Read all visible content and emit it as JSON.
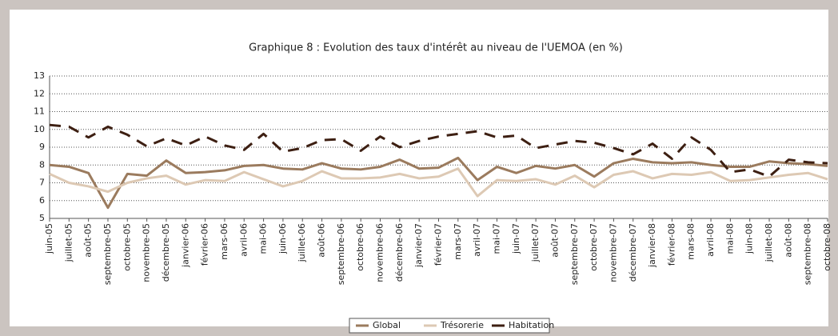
{
  "chart_data": {
    "type": "line",
    "title": "Graphique 8 : Evolution des taux d'intérêt au niveau de l'UEMOA (en %)",
    "categories": [
      "juin-05",
      "juillet-05",
      "août-05",
      "septembre-05",
      "octobre-05",
      "novembre-05",
      "décembre-05",
      "janvier-06",
      "février-06",
      "mars-06",
      "avril-06",
      "mai-06",
      "juin-06",
      "juillet-06",
      "août-06",
      "septembre-06",
      "octobre-06",
      "novembre-06",
      "décembre-06",
      "janvier-07",
      "février-07",
      "mars-07",
      "avril-07",
      "mai-07",
      "juin-07",
      "juillet-07",
      "août-07",
      "septembre-07",
      "octobre-07",
      "novembre-07",
      "décembre-07",
      "janvier-08",
      "février-08",
      "mars-08",
      "avril-08",
      "mai-08",
      "juin-08",
      "juillet-08",
      "août-08",
      "septembre-08",
      "octobre-08"
    ],
    "series": [
      {
        "name": "Global",
        "color": "#9b7b5e",
        "dash": false,
        "values": [
          8.0,
          7.9,
          7.55,
          5.6,
          7.5,
          7.4,
          8.25,
          7.55,
          7.6,
          7.7,
          7.95,
          8.0,
          7.8,
          7.75,
          8.1,
          7.8,
          7.75,
          7.9,
          8.3,
          7.8,
          7.85,
          8.4,
          7.15,
          7.9,
          7.55,
          7.95,
          7.8,
          8.0,
          7.35,
          8.1,
          8.35,
          8.15,
          8.1,
          8.15,
          8.0,
          7.9,
          7.9,
          8.2,
          8.1,
          8.05,
          7.95
        ]
      },
      {
        "name": "Trésorerie",
        "color": "#ddc9b4",
        "dash": false,
        "values": [
          7.5,
          7.0,
          6.8,
          6.5,
          7.0,
          7.25,
          7.4,
          6.9,
          7.15,
          7.1,
          7.6,
          7.2,
          6.8,
          7.1,
          7.65,
          7.25,
          7.25,
          7.3,
          7.5,
          7.25,
          7.35,
          7.8,
          6.25,
          7.15,
          7.1,
          7.2,
          6.9,
          7.4,
          6.75,
          7.45,
          7.65,
          7.25,
          7.5,
          7.45,
          7.6,
          7.1,
          7.15,
          7.3,
          7.45,
          7.55,
          7.2
        ]
      },
      {
        "name": "Habitation",
        "color": "#3d1f12",
        "dash": true,
        "values": [
          10.25,
          10.15,
          9.55,
          10.15,
          9.7,
          9.05,
          9.5,
          9.1,
          9.6,
          9.1,
          8.85,
          9.75,
          8.75,
          8.95,
          9.4,
          9.45,
          8.8,
          9.6,
          9.0,
          9.35,
          9.6,
          9.75,
          9.9,
          9.55,
          9.65,
          8.95,
          9.15,
          9.35,
          9.25,
          8.95,
          8.6,
          9.2,
          8.35,
          9.55,
          8.85,
          7.6,
          7.75,
          7.35,
          8.3,
          8.15,
          8.1
        ]
      }
    ],
    "ylim": [
      5,
      13
    ],
    "yticks": [
      5,
      6,
      7,
      8,
      9,
      10,
      11,
      12,
      13
    ],
    "grid": true
  }
}
